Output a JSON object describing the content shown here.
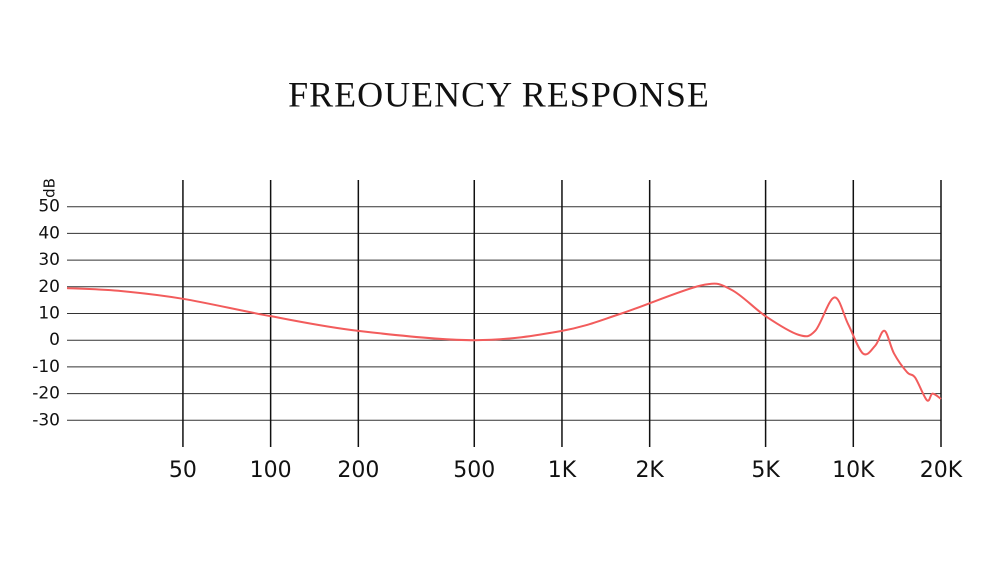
{
  "chart_data": {
    "type": "line",
    "title": "FREOUENCY RESPONSE",
    "y_label": "dB",
    "x": [
      20,
      30,
      50,
      100,
      200,
      500,
      1000,
      1600,
      3000,
      3800,
      5000,
      6500,
      7400,
      8600,
      9600,
      10800,
      11900,
      12800,
      13800,
      15300,
      16300,
      17900,
      18700,
      20000
    ],
    "series": [
      {
        "color": "#f25c5c",
        "values": [
          19.5,
          18.5,
          15.5,
          9,
          3.5,
          0,
          3.5,
          10,
          20.5,
          19,
          9,
          2,
          3.5,
          16,
          6,
          -5,
          -2,
          3.5,
          -5,
          -12,
          -14,
          -22.5,
          -20,
          -22
        ]
      }
    ],
    "xlim": [
      20,
      20000
    ],
    "xscale": "log",
    "xticks": [
      50,
      100,
      200,
      500,
      {
        "value": 1000,
        "label": "1K"
      },
      {
        "value": 2000,
        "label": "2K"
      },
      {
        "value": 5000,
        "label": "5K"
      },
      {
        "value": 10000,
        "label": "10K"
      },
      {
        "value": 20000,
        "label": "20K"
      }
    ],
    "ylim": [
      -40,
      60
    ],
    "yticks": [
      50,
      40,
      30,
      20,
      10,
      0,
      -10,
      -20,
      -30
    ],
    "grid": true
  }
}
